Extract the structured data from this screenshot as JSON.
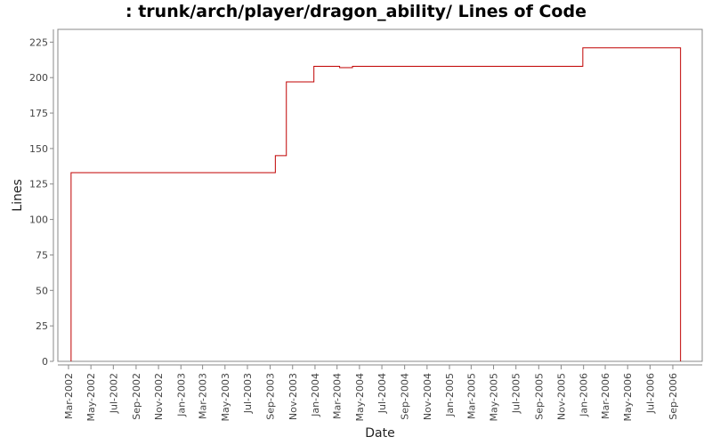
{
  "chart_data": {
    "type": "line",
    "title": ": trunk/arch/player/dragon_ability/ Lines of Code",
    "xlabel": "Date",
    "ylabel": "Lines",
    "ylim": [
      0,
      234
    ],
    "xlim": [
      "2002-01-31",
      "2006-11-20"
    ],
    "y_ticks": [
      0,
      25,
      50,
      75,
      100,
      125,
      150,
      175,
      200,
      225
    ],
    "x_tick_dates": [
      "2002-03-01",
      "2002-05-01",
      "2002-07-01",
      "2002-09-01",
      "2002-11-01",
      "2003-01-01",
      "2003-03-01",
      "2003-05-01",
      "2003-07-01",
      "2003-09-01",
      "2003-11-01",
      "2004-01-01",
      "2004-03-01",
      "2004-05-01",
      "2004-07-01",
      "2004-09-01",
      "2004-11-01",
      "2005-01-01",
      "2005-03-01",
      "2005-05-01",
      "2005-07-01",
      "2005-09-01",
      "2005-11-01",
      "2006-01-01",
      "2006-03-01",
      "2006-05-01",
      "2006-07-01",
      "2006-09-01"
    ],
    "x_tick_labels": [
      "Mar-2002",
      "May-2002",
      "Jul-2002",
      "Sep-2002",
      "Nov-2002",
      "Jan-2003",
      "Mar-2003",
      "May-2003",
      "Jul-2003",
      "Sep-2003",
      "Nov-2003",
      "Jan-2004",
      "Mar-2004",
      "May-2004",
      "Jul-2004",
      "Sep-2004",
      "Nov-2004",
      "Jan-2005",
      "Mar-2005",
      "May-2005",
      "Jul-2005",
      "Sep-2005",
      "Nov-2005",
      "Jan-2006",
      "Mar-2006",
      "May-2006",
      "Jul-2006",
      "Sep-2006"
    ],
    "step": "post",
    "series": [
      {
        "color": "#c00000",
        "points": [
          {
            "x": "2002-03-08",
            "y": 0
          },
          {
            "x": "2002-03-08",
            "y": 133
          },
          {
            "x": "2003-09-15",
            "y": 145
          },
          {
            "x": "2003-10-15",
            "y": 197
          },
          {
            "x": "2003-12-29",
            "y": 208
          },
          {
            "x": "2004-03-08",
            "y": 207
          },
          {
            "x": "2004-04-12",
            "y": 208
          },
          {
            "x": "2005-12-30",
            "y": 221
          },
          {
            "x": "2006-09-22",
            "y": 0
          }
        ]
      }
    ],
    "grid": false,
    "legend": "none",
    "colors": {
      "plot_border": "#888888",
      "axis": "#888888",
      "line": "#c00000"
    }
  }
}
